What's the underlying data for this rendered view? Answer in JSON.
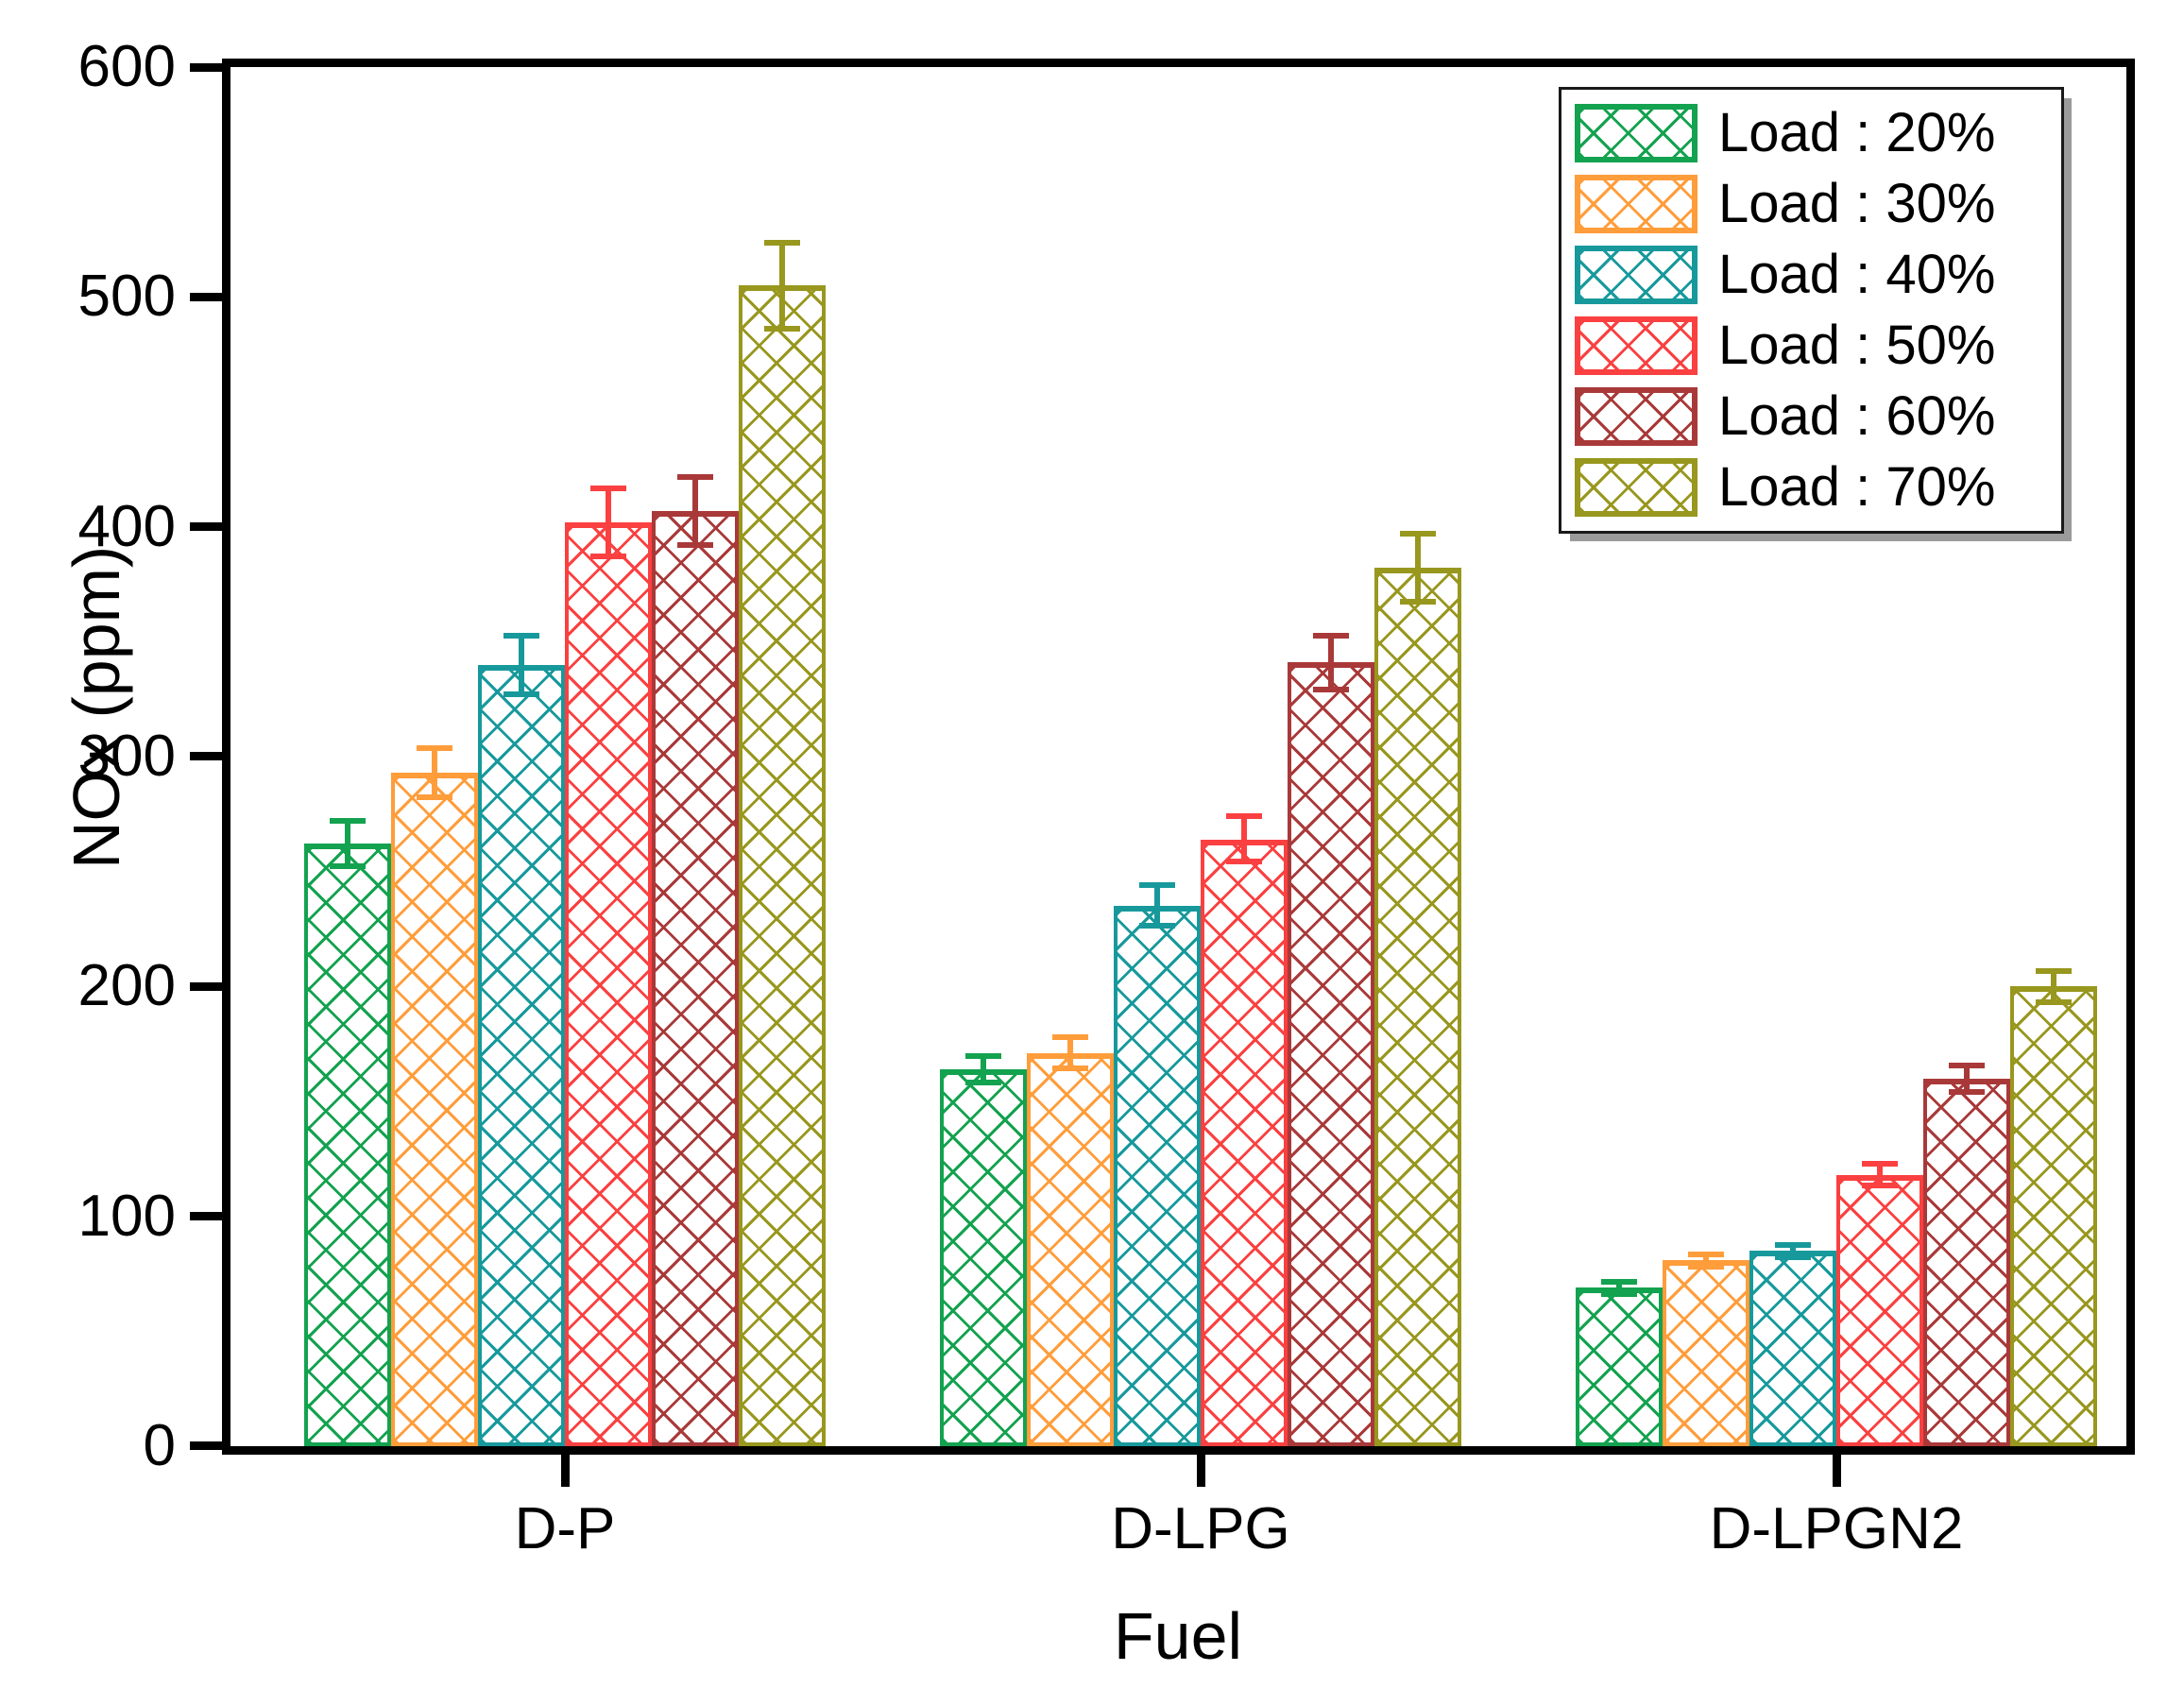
{
  "chart_data": {
    "type": "bar",
    "title": "",
    "xlabel": "Fuel",
    "ylabel": "NOx (ppm)",
    "ylim": [
      0,
      600
    ],
    "y_ticks": [
      0,
      100,
      200,
      300,
      400,
      500,
      600
    ],
    "categories": [
      "D-P",
      "D-LPG",
      "D-LPGN2"
    ],
    "series": [
      {
        "name": "Load : 20%",
        "color": "#13A24F",
        "values": [
          262,
          164,
          69
        ],
        "errors": [
          11,
          7,
          4
        ]
      },
      {
        "name": "Load : 30%",
        "color": "#FF9D3B",
        "values": [
          293,
          171,
          81
        ],
        "errors": [
          12,
          8,
          4
        ]
      },
      {
        "name": "Load : 40%",
        "color": "#17999C",
        "values": [
          340,
          235,
          85
        ],
        "errors": [
          14,
          10,
          4
        ]
      },
      {
        "name": "Load : 50%",
        "color": "#FA4040",
        "values": [
          402,
          264,
          118
        ],
        "errors": [
          16,
          11,
          6
        ]
      },
      {
        "name": "Load : 60%",
        "color": "#A93939",
        "values": [
          407,
          341,
          160
        ],
        "errors": [
          16,
          13,
          7
        ]
      },
      {
        "name": "Load : 70%",
        "color": "#98971E",
        "values": [
          505,
          382,
          200
        ],
        "errors": [
          20,
          16,
          8
        ]
      }
    ],
    "legend_position": "top-right",
    "grid": false,
    "hatch": "crosshatch",
    "error_bars": true
  }
}
